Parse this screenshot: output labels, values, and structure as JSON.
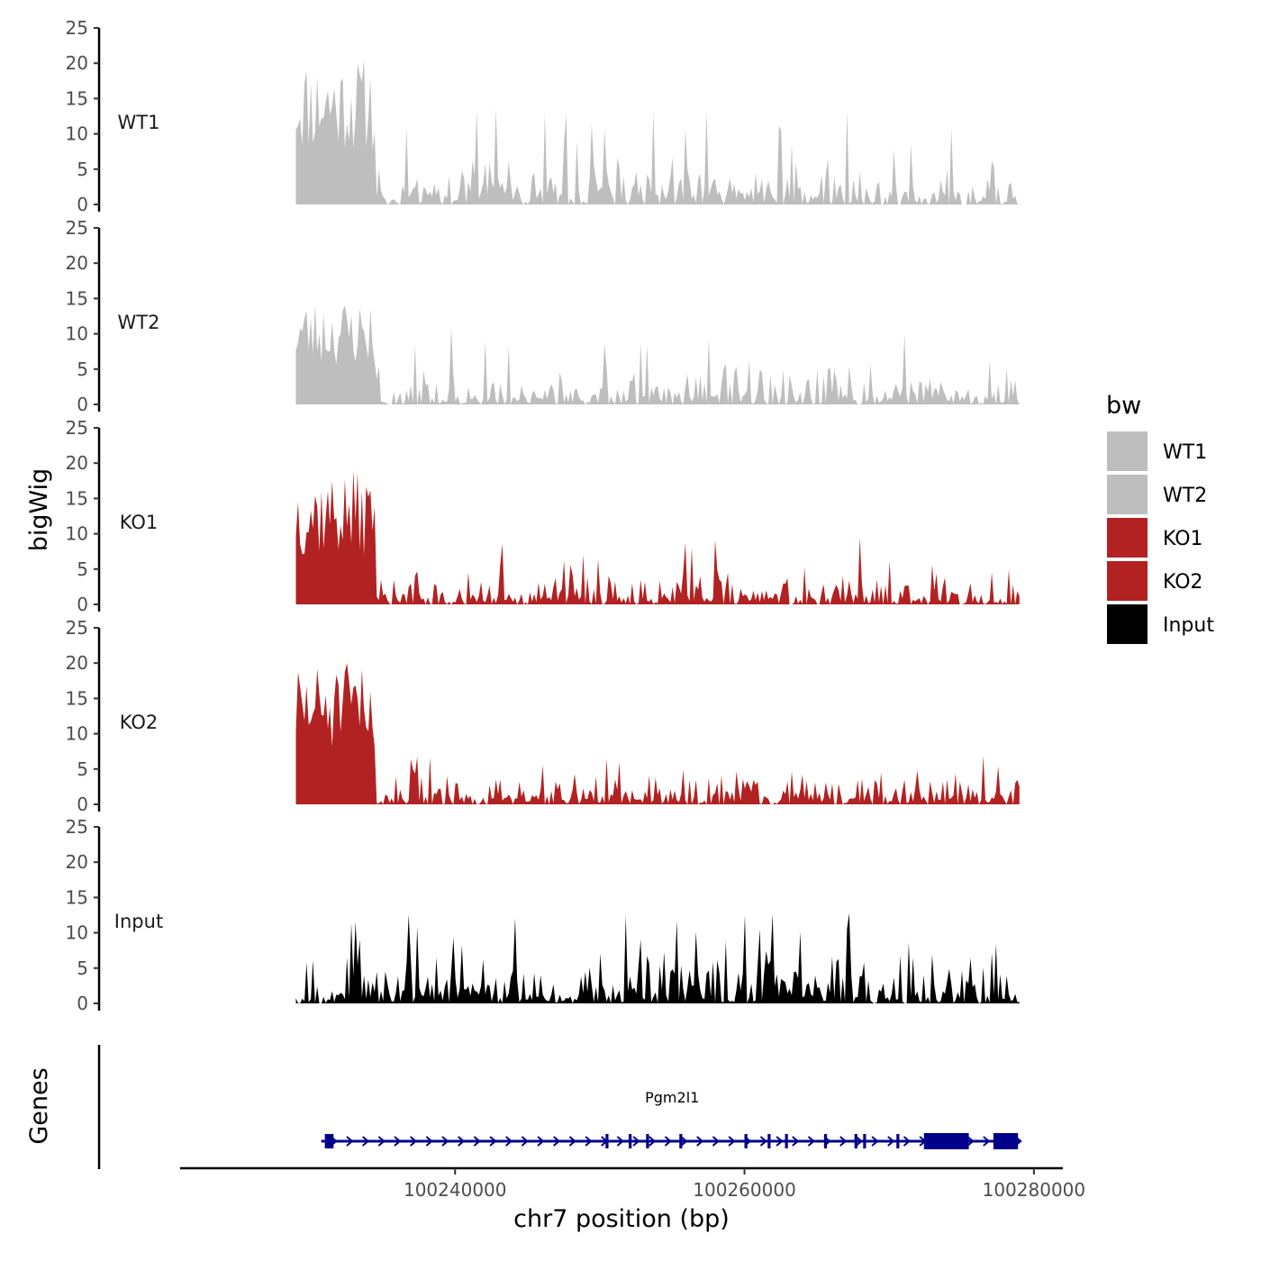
{
  "chart_data": {
    "type": "area",
    "ylabel": "bigWig",
    "genes_label": "Genes",
    "xlabel": "chr7 position (bp)",
    "x_range": [
      100221000,
      100282000
    ],
    "data_x_range": [
      100229000,
      100279000
    ],
    "ylim": [
      0,
      25
    ],
    "y_ticks": [
      0,
      5,
      10,
      15,
      20,
      25
    ],
    "x_ticks": [
      100240000,
      100260000,
      100280000
    ],
    "x_tick_labels": [
      "100240000",
      "100260000",
      "100280000"
    ],
    "series": [
      {
        "name": "WT1",
        "color": "#BEBEBE",
        "high_region_max": 21,
        "background_max": 7,
        "peak_max": 14,
        "seed": 11
      },
      {
        "name": "WT2",
        "color": "#BEBEBE",
        "high_region_max": 15,
        "background_max": 6,
        "peak_max": 11,
        "seed": 23
      },
      {
        "name": "KO1",
        "color": "#B22222",
        "high_region_max": 19,
        "background_max": 5,
        "peak_max": 10,
        "seed": 37
      },
      {
        "name": "KO2",
        "color": "#B22222",
        "high_region_max": 20,
        "background_max": 5,
        "peak_max": 7,
        "seed": 51
      },
      {
        "name": "Input",
        "color": "#000000",
        "high_region_max": 8,
        "background_max": 8,
        "peak_max": 13,
        "seed": 67
      }
    ],
    "legend": {
      "title": "bw",
      "position": "right",
      "entries": [
        {
          "label": "WT1",
          "color": "#BEBEBE"
        },
        {
          "label": "WT2",
          "color": "#BEBEBE"
        },
        {
          "label": "KO1",
          "color": "#B22222"
        },
        {
          "label": "KO2",
          "color": "#B22222"
        },
        {
          "label": "Input",
          "color": "#000000"
        }
      ]
    },
    "gene": {
      "name": "Pgm2l1",
      "color": "#00008B",
      "start": 100231000,
      "end": 100279000,
      "strand": "+",
      "exons": [
        {
          "start": 100231000,
          "end": 100231600
        },
        {
          "start": 100250400,
          "end": 100250600
        },
        {
          "start": 100252000,
          "end": 100252200
        },
        {
          "start": 100253200,
          "end": 100253400
        },
        {
          "start": 100255500,
          "end": 100255700
        },
        {
          "start": 100260000,
          "end": 100260200
        },
        {
          "start": 100261600,
          "end": 100261800
        },
        {
          "start": 100262800,
          "end": 100263000
        },
        {
          "start": 100265500,
          "end": 100265700
        },
        {
          "start": 100267600,
          "end": 100267800
        },
        {
          "start": 100268200,
          "end": 100268400
        },
        {
          "start": 100270500,
          "end": 100270700
        },
        {
          "start": 100272400,
          "end": 100275500
        },
        {
          "start": 100277200,
          "end": 100278900
        }
      ]
    }
  }
}
